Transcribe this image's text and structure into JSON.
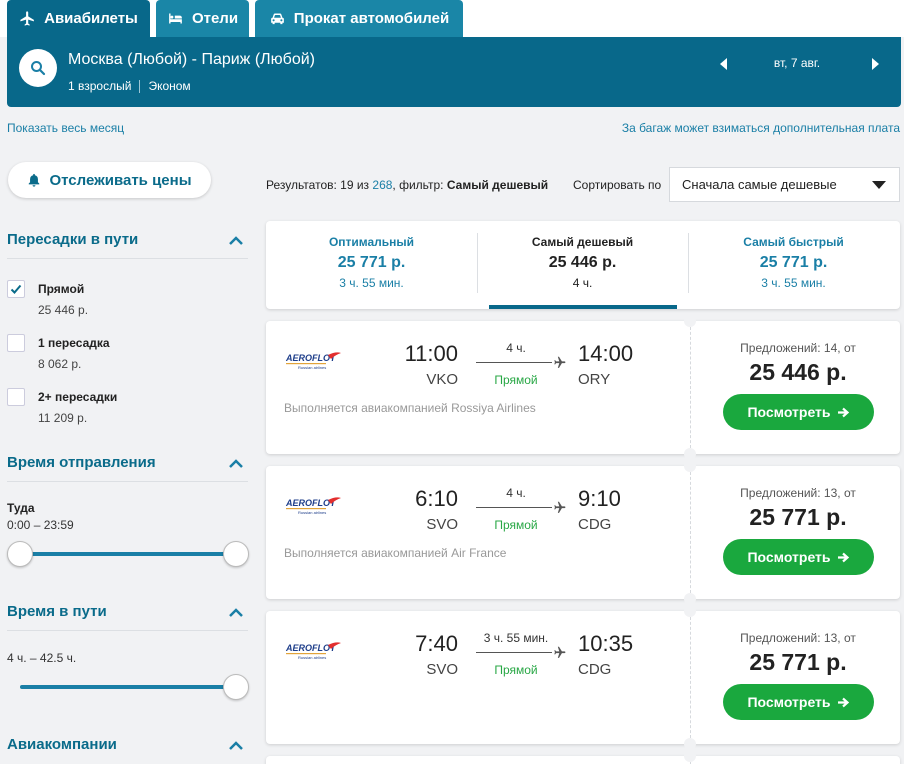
{
  "tabs": [
    {
      "label": "Авиабилеты",
      "icon": "plane-icon"
    },
    {
      "label": "Отели",
      "icon": "bed-icon"
    },
    {
      "label": "Прокат автомобилей",
      "icon": "car-icon"
    }
  ],
  "search": {
    "route": "Москва (Любой) - Париж (Любой)",
    "passengers": "1 взрослый",
    "cabin": "Эконом",
    "date": "вт, 7 авг."
  },
  "links": {
    "month": "Показать весь месяц",
    "baggage": "За багаж может взиматься дополнительная плата"
  },
  "sidebar": {
    "track_button": "Отслеживать цены",
    "stops": {
      "title": "Пересадки в пути",
      "options": [
        {
          "label": "Прямой",
          "price": "25 446 р.",
          "checked": true
        },
        {
          "label": "1 пересадка",
          "price": "8 062 р.",
          "checked": false
        },
        {
          "label": "2+ пересадки",
          "price": "11 209 р.",
          "checked": false
        }
      ]
    },
    "departure": {
      "title": "Время отправления",
      "direction": "Туда",
      "range": "0:00 – 23:59"
    },
    "duration": {
      "title": "Время в пути",
      "range": "4 ч. – 42.5 ч."
    },
    "airlines": {
      "title": "Авиакомпании"
    }
  },
  "results": {
    "prefix": "Результатов: 19 из ",
    "total": "268",
    "filter_prefix": ", фильтр: ",
    "filter": "Самый дешевый",
    "sort_label": "Сортировать по",
    "sort_value": "Сначала самые дешевые"
  },
  "sort_tabs": [
    {
      "name": "Оптимальный",
      "price": "25 771 р.",
      "duration": "3 ч. 55 мин."
    },
    {
      "name": "Самый дешевый",
      "price": "25 446 р.",
      "duration": "4 ч."
    },
    {
      "name": "Самый быстрый",
      "price": "25 771 р.",
      "duration": "3 ч. 55 мин."
    }
  ],
  "flights": [
    {
      "dep_time": "11:00",
      "dep_code": "VKO",
      "duration": "4 ч.",
      "type": "Прямой",
      "arr_time": "14:00",
      "arr_code": "ORY",
      "operator": "Выполняется авиакомпанией Rossiya Airlines",
      "offers": "Предложений: 14, от",
      "price": "25 446 р.",
      "button": "Посмотреть"
    },
    {
      "dep_time": "6:10",
      "dep_code": "SVO",
      "duration": "4 ч.",
      "type": "Прямой",
      "arr_time": "9:10",
      "arr_code": "CDG",
      "operator": "Выполняется авиакомпанией Air France",
      "offers": "Предложений: 13, от",
      "price": "25 771 р.",
      "button": "Посмотреть"
    },
    {
      "dep_time": "7:40",
      "dep_code": "SVO",
      "duration": "3 ч. 55 мин.",
      "type": "Прямой",
      "arr_time": "10:35",
      "arr_code": "CDG",
      "operator": "",
      "offers": "Предложений: 13, от",
      "price": "25 771 р.",
      "button": "Посмотреть"
    }
  ],
  "colors": {
    "brand": "#08688a",
    "accent_link": "#1a7fa6",
    "cta": "#1aa83e",
    "direct": "#28a745"
  }
}
